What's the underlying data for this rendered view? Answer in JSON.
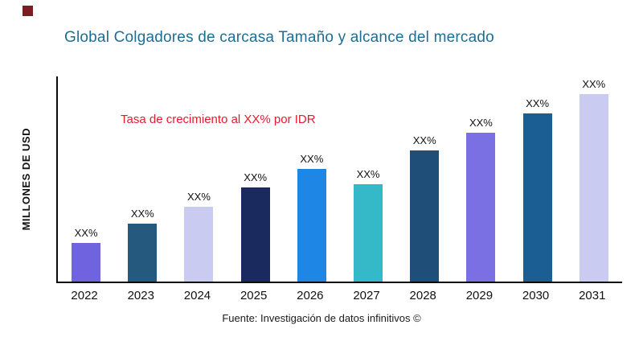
{
  "page": {
    "title": "Global Colgadores de carcasa Tamaño y alcance del mercado",
    "y_axis_label": "MILLONES DE USD",
    "annotation": "Tasa de crecimiento al XX% por IDR",
    "footer": "Fuente: Investigación de datos infinitivos ©"
  },
  "colors": {
    "title": "#1d6e96",
    "annotation": "#e8192c",
    "logo": "#7b1e24",
    "axis": "#0a0a0a"
  },
  "chart_data": {
    "type": "bar",
    "title": "Global Colgadores de carcasa Tamaño y alcance del mercado",
    "xlabel": "",
    "ylabel": "MILLONES DE USD",
    "categories": [
      "2022",
      "2023",
      "2024",
      "2025",
      "2026",
      "2027",
      "2028",
      "2029",
      "2030",
      "2031"
    ],
    "values": [
      48,
      72,
      93,
      117,
      140,
      121,
      163,
      185,
      209,
      233
    ],
    "value_labels": [
      "XX%",
      "XX%",
      "XX%",
      "XX%",
      "XX%",
      "XX%",
      "XX%",
      "XX%",
      "XX%",
      "XX%"
    ],
    "bar_colors": [
      "#6f63e0",
      "#255a7e",
      "#c9ccf0",
      "#1a2a5e",
      "#1e87e5",
      "#35b8c8",
      "#1f4e79",
      "#7a6fe3",
      "#1b5e94",
      "#c9ccf0"
    ],
    "values_note": "Numeric values not shown in chart (all labels are XX%); values are relative heights estimated from pixels",
    "annotation": "Tasa de crecimiento al XX% por IDR",
    "ylim": [
      0,
      255
    ],
    "grid": false,
    "legend": false
  }
}
